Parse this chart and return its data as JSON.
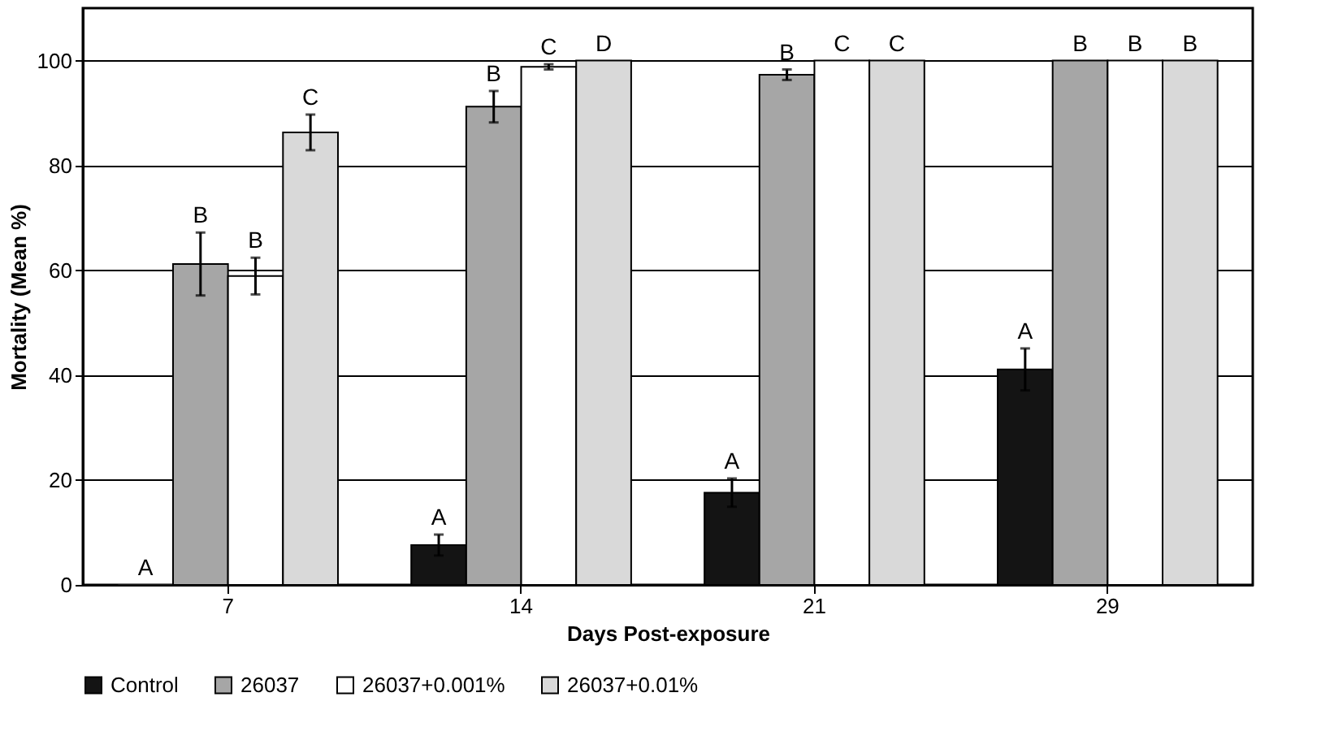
{
  "chart_data": {
    "type": "bar",
    "xlabel": "Days Post-exposure",
    "ylabel": "Mortality (Mean %)",
    "categories": [
      "7",
      "14",
      "21",
      "29"
    ],
    "series": [
      {
        "name": "Control",
        "color": "#141414",
        "values": [
          0,
          7.6,
          17.6,
          41.1
        ],
        "errors": [
          null,
          2,
          2.7,
          4
        ],
        "value_labels": [
          "A",
          "A",
          "A",
          "A"
        ]
      },
      {
        "name": "26037",
        "color": "#a6a6a6",
        "values": [
          61.2,
          91.2,
          97.3,
          100
        ],
        "errors": [
          6,
          3,
          1,
          null
        ],
        "value_labels": [
          "B",
          "B",
          "B",
          "B"
        ]
      },
      {
        "name": "26037+0.001%",
        "color": "#ffffff",
        "values": [
          58.9,
          98.8,
          100,
          100
        ],
        "errors": [
          3.5,
          0.5,
          null,
          null
        ],
        "value_labels": [
          "B",
          "C",
          "C",
          "B"
        ]
      },
      {
        "name": "26037+0.01%",
        "color": "#d9d9d9",
        "values": [
          86.3,
          100,
          100,
          100
        ],
        "errors": [
          3.4,
          null,
          null,
          null
        ],
        "value_labels": [
          "C",
          "D",
          "C",
          "B"
        ]
      }
    ],
    "ylim": [
      0,
      110
    ],
    "yticks": [
      0,
      20,
      40,
      60,
      80,
      100
    ],
    "grid": "y",
    "legend": "bottom"
  }
}
